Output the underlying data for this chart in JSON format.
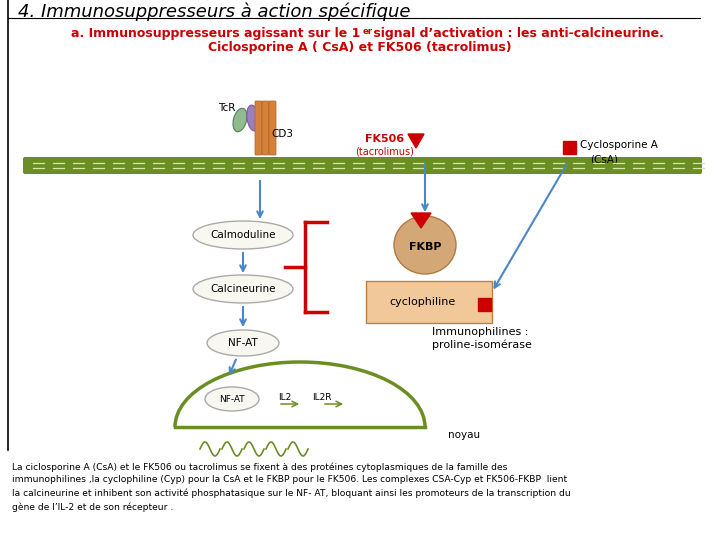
{
  "title1": "4. Immunosuppresseurs à action spécifique",
  "title2_part1": "a. Immunosuppresseurs agissant sur le 1",
  "title2_super": "er",
  "title2_part2": " signal d’activation : les anti-calcineurine.",
  "title3": "Ciclosporine A ( CsA) et FK506 (tacrolimus)",
  "title1_color": "#000000",
  "title2_color": "#cc0000",
  "bg_color": "#ffffff",
  "green_color": "#6b8e23",
  "red_color": "#cc0000",
  "blue_color": "#4a86c8",
  "orange_color": "#d4813a",
  "fkbp_color": "#d4a876",
  "cyclo_color": "#f0c899",
  "bottom_lines": [
    "La ciclosporine A (CsA) et le FK506 ou tacrolimus se fixent à des protéines cytoplasmiques de la famille des",
    "immunophilines ,la cyclophiline (Cyp) pour la CsA et le FKBP pour le FK506. Les complexes CSA-Cyp et FK506-FKBP  lient",
    "la calcineurine et inhibent son activité phosphatasique sur le NF- AT, bloquant ainsi les promoteurs de la transcription du",
    "gène de l’IL-2 et de son récepteur ."
  ]
}
